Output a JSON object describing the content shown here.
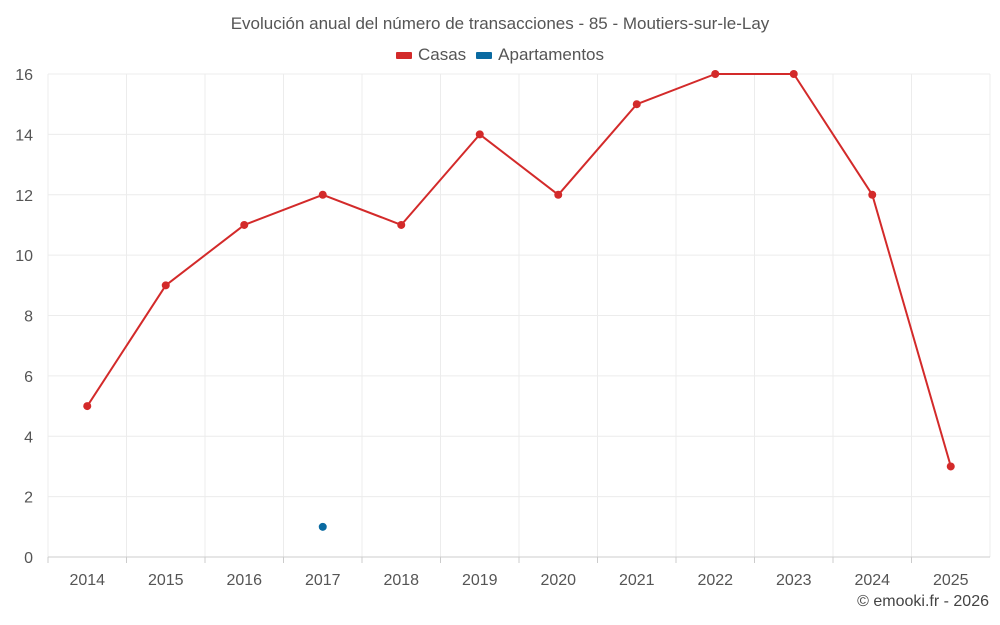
{
  "chart_data": {
    "type": "line",
    "title": "Evolución anual del número de transacciones - 85 - Moutiers-sur-le-Lay",
    "categories": [
      "2014",
      "2015",
      "2016",
      "2017",
      "2018",
      "2019",
      "2020",
      "2021",
      "2022",
      "2023",
      "2024",
      "2025"
    ],
    "series": [
      {
        "name": "Casas",
        "color": "#d32a2a",
        "values": [
          5,
          9,
          11,
          12,
          11,
          14,
          12,
          15,
          16,
          16,
          12,
          3
        ]
      },
      {
        "name": "Apartamentos",
        "color": "#0a6aa1",
        "values": [
          null,
          null,
          null,
          1,
          null,
          null,
          null,
          null,
          null,
          null,
          null,
          null
        ]
      }
    ],
    "ylim": [
      0,
      16
    ],
    "yticks": [
      "0",
      "2",
      "4",
      "6",
      "8",
      "10",
      "12",
      "14",
      "16"
    ],
    "xlabel": "",
    "ylabel": "",
    "grid": true,
    "legend": "top-center"
  },
  "credit": "© emooki.fr - 2026"
}
